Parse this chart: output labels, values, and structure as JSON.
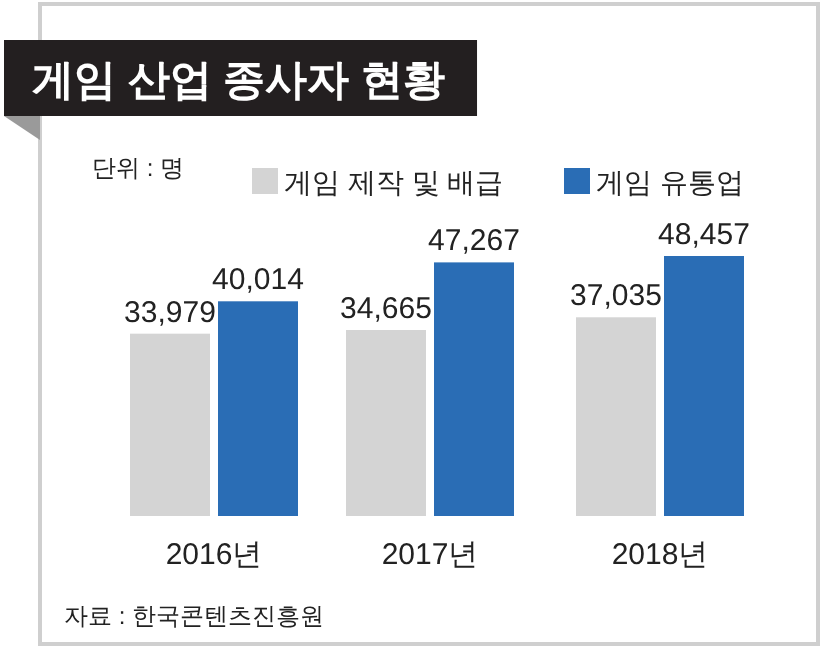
{
  "chart_data": {
    "type": "bar",
    "title": "게임 산업 종사자 현황",
    "categories": [
      "2016년",
      "2017년",
      "2018년"
    ],
    "series": [
      {
        "name": "게임 제작 및 배급",
        "color": "#d4d4d4",
        "values": [
          33979,
          34665,
          37035
        ],
        "value_labels": [
          "33,979",
          "34,665",
          "37,035"
        ]
      },
      {
        "name": "게임 유통업",
        "color": "#2a6db5",
        "values": [
          40014,
          47267,
          48457
        ],
        "value_labels": [
          "40,014",
          "47,267",
          "48,457"
        ]
      }
    ],
    "legend": "top",
    "annotations": [
      "단위 : 명",
      "자료 : 한국콘텐츠진흥원"
    ]
  }
}
